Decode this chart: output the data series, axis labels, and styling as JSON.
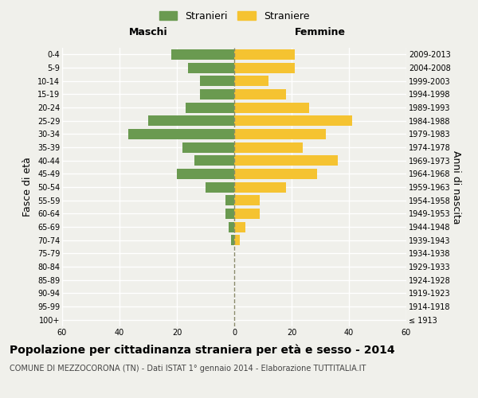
{
  "age_groups": [
    "100+",
    "95-99",
    "90-94",
    "85-89",
    "80-84",
    "75-79",
    "70-74",
    "65-69",
    "60-64",
    "55-59",
    "50-54",
    "45-49",
    "40-44",
    "35-39",
    "30-34",
    "25-29",
    "20-24",
    "15-19",
    "10-14",
    "5-9",
    "0-4"
  ],
  "birth_years": [
    "≤ 1913",
    "1914-1918",
    "1919-1923",
    "1924-1928",
    "1929-1933",
    "1934-1938",
    "1939-1943",
    "1944-1948",
    "1949-1953",
    "1954-1958",
    "1959-1963",
    "1964-1968",
    "1969-1973",
    "1974-1978",
    "1979-1983",
    "1984-1988",
    "1989-1993",
    "1994-1998",
    "1999-2003",
    "2004-2008",
    "2009-2013"
  ],
  "males": [
    0,
    0,
    0,
    0,
    0,
    0,
    1,
    2,
    3,
    3,
    10,
    20,
    14,
    18,
    37,
    30,
    17,
    12,
    12,
    16,
    22
  ],
  "females": [
    0,
    0,
    0,
    0,
    0,
    0,
    2,
    4,
    9,
    9,
    18,
    29,
    36,
    24,
    32,
    41,
    26,
    18,
    12,
    21,
    21
  ],
  "male_color": "#6a9a50",
  "female_color": "#f5c331",
  "male_label": "Stranieri",
  "female_label": "Straniere",
  "xlim": 60,
  "title": "Popolazione per cittadinanza straniera per età e sesso - 2014",
  "subtitle": "COMUNE DI MEZZOCORONA (TN) - Dati ISTAT 1° gennaio 2014 - Elaborazione TUTTITALIA.IT",
  "ylabel_left": "Fasce di età",
  "ylabel_right": "Anni di nascita",
  "xlabel_left": "Maschi",
  "xlabel_right": "Femmine",
  "background_color": "#f0f0eb",
  "grid_color": "#ffffff",
  "center_line_color": "#8b8b6b",
  "tick_fontsize": 7,
  "label_fontsize": 9,
  "title_fontsize": 10,
  "subtitle_fontsize": 7
}
